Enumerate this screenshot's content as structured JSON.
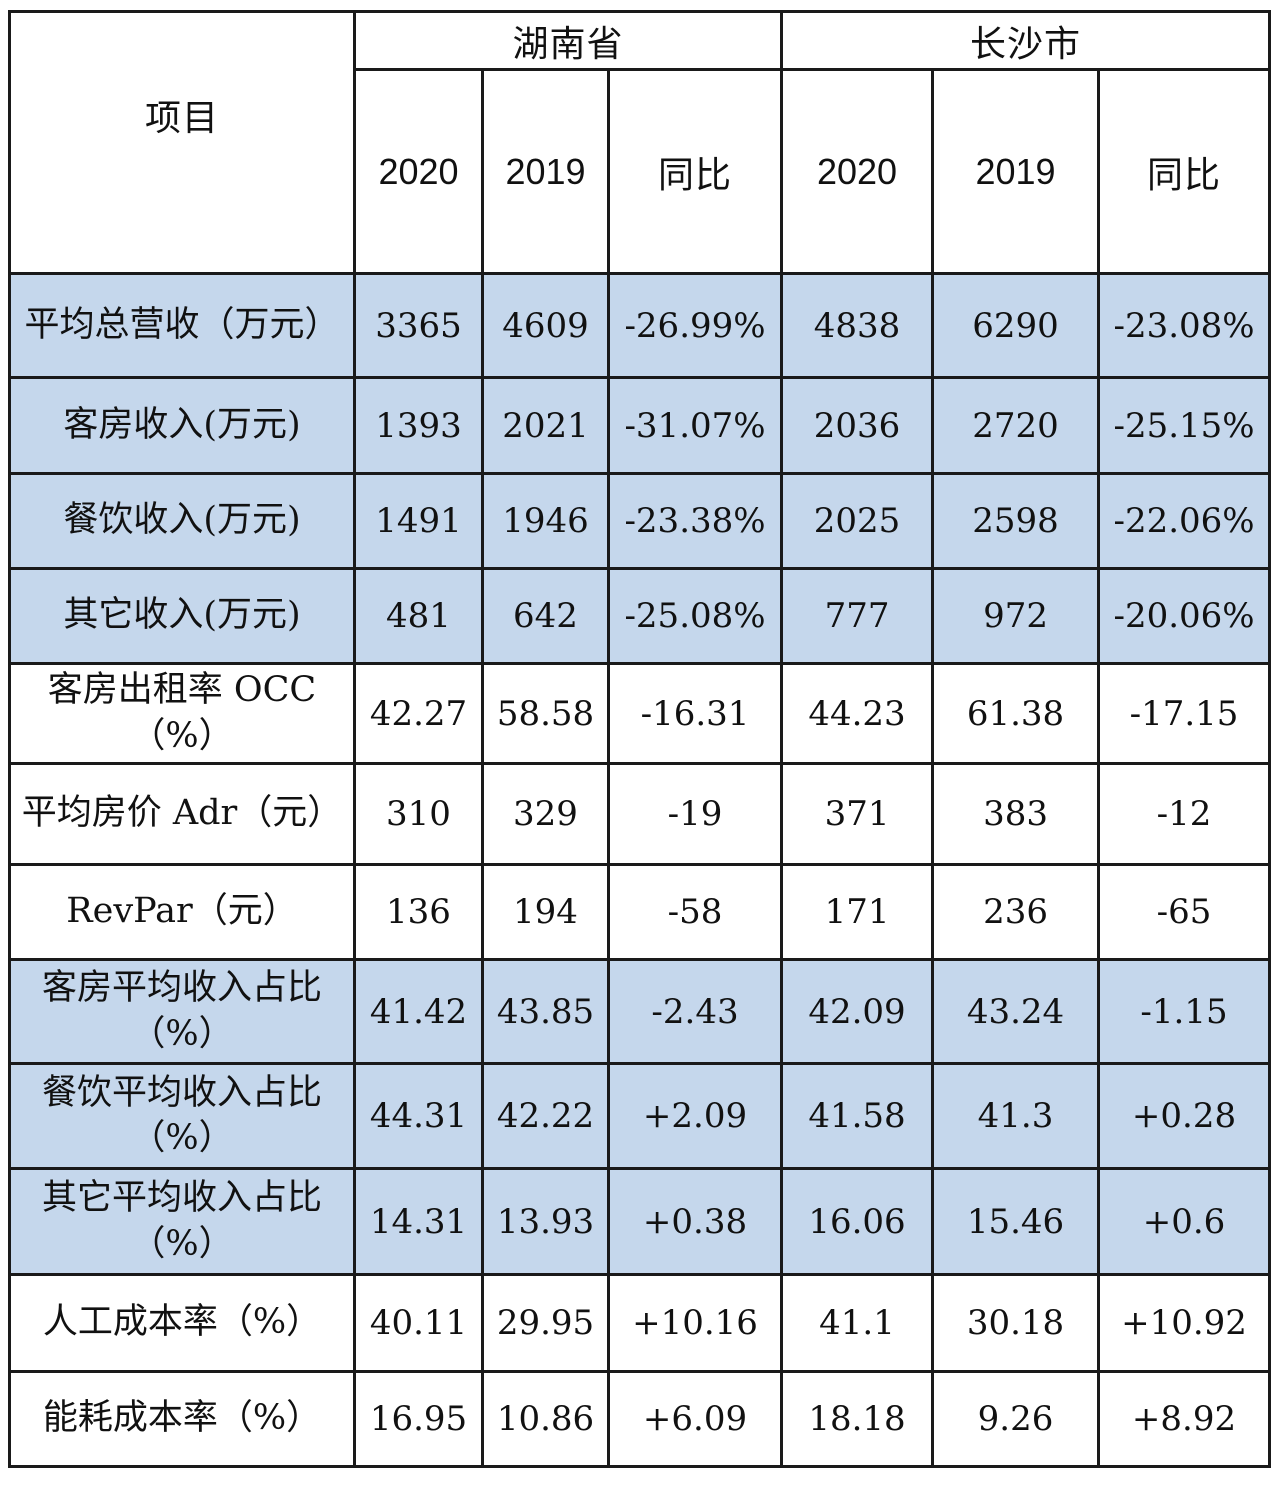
{
  "header": {
    "item_label": "项目",
    "group_1": "湖南省",
    "group_2": "长沙市",
    "year_a": "2020",
    "year_b": "2019",
    "yoy": "同比"
  },
  "rows": [
    {
      "label": "平均总营收（万元）",
      "hn_2020": "3365",
      "hn_2019": "4609",
      "hn_yoy": "-26.99%",
      "cs_2020": "4838",
      "cs_2019": "6290",
      "cs_yoy": "-23.08%",
      "shade": "blue"
    },
    {
      "label": "客房收入(万元)",
      "hn_2020": "1393",
      "hn_2019": "2021",
      "hn_yoy": "-31.07%",
      "cs_2020": "2036",
      "cs_2019": "2720",
      "cs_yoy": "-25.15%",
      "shade": "blue"
    },
    {
      "label": "餐饮收入(万元)",
      "hn_2020": "1491",
      "hn_2019": "1946",
      "hn_yoy": "-23.38%",
      "cs_2020": "2025",
      "cs_2019": "2598",
      "cs_yoy": "-22.06%",
      "shade": "blue"
    },
    {
      "label": "其它收入(万元)",
      "hn_2020": "481",
      "hn_2019": "642",
      "hn_yoy": "-25.08%",
      "cs_2020": "777",
      "cs_2019": "972",
      "cs_yoy": "-20.06%",
      "shade": "blue"
    },
    {
      "label": "客房出租率 OCC（%）",
      "hn_2020": "42.27",
      "hn_2019": "58.58",
      "hn_yoy": "-16.31",
      "cs_2020": "44.23",
      "cs_2019": "61.38",
      "cs_yoy": "-17.15",
      "shade": "white"
    },
    {
      "label": "平均房价 Adr（元）",
      "hn_2020": "310",
      "hn_2019": "329",
      "hn_yoy": "-19",
      "cs_2020": "371",
      "cs_2019": "383",
      "cs_yoy": "-12",
      "shade": "white"
    },
    {
      "label": "RevPar（元）",
      "hn_2020": "136",
      "hn_2019": "194",
      "hn_yoy": "-58",
      "cs_2020": "171",
      "cs_2019": "236",
      "cs_yoy": "-65",
      "shade": "white"
    },
    {
      "label": "客房平均收入占比（%）",
      "hn_2020": "41.42",
      "hn_2019": "43.85",
      "hn_yoy": "-2.43",
      "cs_2020": "42.09",
      "cs_2019": "43.24",
      "cs_yoy": "-1.15",
      "shade": "blue"
    },
    {
      "label": "餐饮平均收入占比（%）",
      "hn_2020": "44.31",
      "hn_2019": "42.22",
      "hn_yoy": "+2.09",
      "cs_2020": "41.58",
      "cs_2019": "41.3",
      "cs_yoy": "+0.28",
      "shade": "blue"
    },
    {
      "label": "其它平均收入占比（%）",
      "hn_2020": "14.31",
      "hn_2019": "13.93",
      "hn_yoy": "+0.38",
      "cs_2020": "16.06",
      "cs_2019": "15.46",
      "cs_yoy": "+0.6",
      "shade": "blue"
    },
    {
      "label": "人工成本率（%）",
      "hn_2020": "40.11",
      "hn_2019": "29.95",
      "hn_yoy": "+10.16",
      "cs_2020": "41.1",
      "cs_2019": "30.18",
      "cs_yoy": "+10.92",
      "shade": "white"
    },
    {
      "label": "能耗成本率（%）",
      "hn_2020": "16.95",
      "hn_2019": "10.86",
      "hn_yoy": "+6.09",
      "cs_2020": "18.18",
      "cs_2019": "9.26",
      "cs_yoy": "+8.92",
      "shade": "white"
    }
  ],
  "colors": {
    "shade_blue": "#c5d7ec",
    "border": "#1a1a1a"
  }
}
